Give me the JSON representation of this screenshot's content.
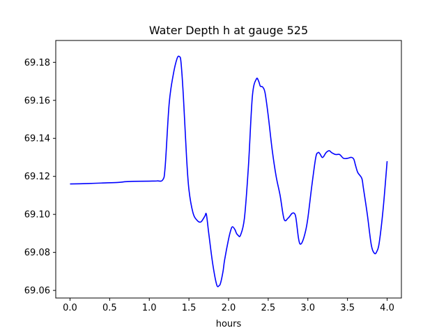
{
  "chart_data": {
    "type": "line",
    "title": "Water Depth h at gauge 525",
    "xlabel": "hours",
    "ylabel": "",
    "xlim": [
      -0.18,
      4.18
    ],
    "ylim": [
      69.056,
      69.1915
    ],
    "xticks": [
      0.0,
      0.5,
      1.0,
      1.5,
      2.0,
      2.5,
      3.0,
      3.5,
      4.0
    ],
    "xtick_labels": [
      "0.0",
      "0.5",
      "1.0",
      "1.5",
      "2.0",
      "2.5",
      "3.0",
      "3.5",
      "4.0"
    ],
    "yticks": [
      69.06,
      69.08,
      69.1,
      69.12,
      69.14,
      69.16,
      69.18
    ],
    "ytick_labels": [
      "69.06",
      "69.08",
      "69.10",
      "69.12",
      "69.14",
      "69.16",
      "69.18"
    ],
    "grid": false,
    "series": [
      {
        "color": "#0000ff",
        "x": [
          0.0,
          0.2,
          0.4,
          0.6,
          0.7,
          0.8,
          1.0,
          1.1,
          1.17,
          1.2,
          1.25,
          1.3,
          1.35,
          1.38,
          1.4,
          1.43,
          1.47,
          1.5,
          1.55,
          1.6,
          1.65,
          1.7,
          1.72,
          1.75,
          1.8,
          1.85,
          1.88,
          1.9,
          1.93,
          1.95,
          2.0,
          2.03,
          2.05,
          2.08,
          2.1,
          2.12,
          2.15,
          2.2,
          2.25,
          2.3,
          2.35,
          2.38,
          2.4,
          2.43,
          2.46,
          2.5,
          2.55,
          2.6,
          2.65,
          2.7,
          2.75,
          2.8,
          2.83,
          2.85,
          2.88,
          2.9,
          2.93,
          2.97,
          3.0,
          3.05,
          3.1,
          3.13,
          3.15,
          3.18,
          3.2,
          3.23,
          3.27,
          3.3,
          3.35,
          3.4,
          3.45,
          3.5,
          3.55,
          3.58,
          3.6,
          3.63,
          3.68,
          3.7,
          3.75,
          3.8,
          3.84,
          3.87,
          3.9,
          3.95,
          4.0
        ],
        "y": [
          69.116,
          69.1162,
          69.1165,
          69.1168,
          69.1172,
          69.1174,
          69.1175,
          69.1176,
          69.1182,
          69.125,
          69.158,
          69.173,
          69.182,
          69.183,
          69.18,
          69.162,
          69.13,
          69.113,
          69.101,
          69.097,
          69.096,
          69.099,
          69.1,
          69.09,
          69.074,
          69.063,
          69.0625,
          69.064,
          69.07,
          69.076,
          69.087,
          69.092,
          69.0935,
          69.092,
          69.09,
          69.089,
          69.089,
          69.098,
          69.125,
          69.162,
          69.1712,
          69.17,
          69.1675,
          69.167,
          69.164,
          69.152,
          69.134,
          69.12,
          69.11,
          69.0975,
          69.098,
          69.1005,
          69.1005,
          69.098,
          69.088,
          69.0845,
          69.0855,
          69.091,
          69.098,
          69.115,
          69.13,
          69.1325,
          69.132,
          69.13,
          69.1305,
          69.1325,
          69.1335,
          69.1325,
          69.1315,
          69.1315,
          69.1295,
          69.1295,
          69.13,
          69.129,
          69.126,
          69.122,
          69.119,
          69.114,
          69.1,
          69.084,
          69.0795,
          69.0805,
          69.085,
          69.103,
          69.128
        ]
      }
    ]
  }
}
